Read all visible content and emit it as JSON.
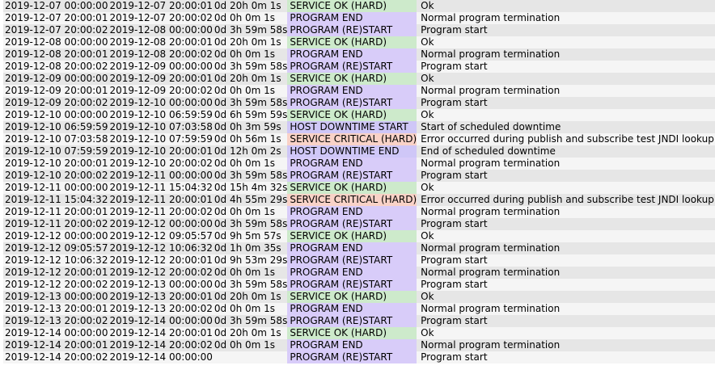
{
  "table": {
    "rows": [
      {
        "start": "2019-12-07 00:00:00",
        "end": "2019-12-07 20:00:01",
        "duration": "0d 20h 0m 1s",
        "type": "SERVICE OK (HARD)",
        "kind": "ok",
        "info": "Ok"
      },
      {
        "start": "2019-12-07 20:00:01",
        "end": "2019-12-07 20:00:02",
        "duration": "0d 0h 0m 1s",
        "type": "PROGRAM END",
        "kind": "end",
        "info": "Normal program termination"
      },
      {
        "start": "2019-12-07 20:00:02",
        "end": "2019-12-08 00:00:00",
        "duration": "0d 3h 59m 58s",
        "type": "PROGRAM (RE)START",
        "kind": "start",
        "info": "Program start"
      },
      {
        "start": "2019-12-08 00:00:00",
        "end": "2019-12-08 20:00:01",
        "duration": "0d 20h 0m 1s",
        "type": "SERVICE OK (HARD)",
        "kind": "ok",
        "info": "Ok"
      },
      {
        "start": "2019-12-08 20:00:01",
        "end": "2019-12-08 20:00:02",
        "duration": "0d 0h 0m 1s",
        "type": "PROGRAM END",
        "kind": "end",
        "info": "Normal program termination"
      },
      {
        "start": "2019-12-08 20:00:02",
        "end": "2019-12-09 00:00:00",
        "duration": "0d 3h 59m 58s",
        "type": "PROGRAM (RE)START",
        "kind": "start",
        "info": "Program start"
      },
      {
        "start": "2019-12-09 00:00:00",
        "end": "2019-12-09 20:00:01",
        "duration": "0d 20h 0m 1s",
        "type": "SERVICE OK (HARD)",
        "kind": "ok",
        "info": "Ok"
      },
      {
        "start": "2019-12-09 20:00:01",
        "end": "2019-12-09 20:00:02",
        "duration": "0d 0h 0m 1s",
        "type": "PROGRAM END",
        "kind": "end",
        "info": "Normal program termination"
      },
      {
        "start": "2019-12-09 20:00:02",
        "end": "2019-12-10 00:00:00",
        "duration": "0d 3h 59m 58s",
        "type": "PROGRAM (RE)START",
        "kind": "start",
        "info": "Program start"
      },
      {
        "start": "2019-12-10 00:00:00",
        "end": "2019-12-10 06:59:59",
        "duration": "0d 6h 59m 59s",
        "type": "SERVICE OK (HARD)",
        "kind": "ok",
        "info": "Ok"
      },
      {
        "start": "2019-12-10 06:59:59",
        "end": "2019-12-10 07:03:58",
        "duration": "0d 0h 3m 59s",
        "type": "HOST DOWNTIME START",
        "kind": "hostdt",
        "info": "Start of scheduled downtime"
      },
      {
        "start": "2019-12-10 07:03:58",
        "end": "2019-12-10 07:59:59",
        "duration": "0d 0h 56m 1s",
        "type": "SERVICE CRITICAL (HARD)",
        "kind": "crit",
        "info": "Error occurred during publish and subscribe test JNDI lookup failed"
      },
      {
        "start": "2019-12-10 07:59:59",
        "end": "2019-12-10 20:00:01",
        "duration": "0d 12h 0m 2s",
        "type": "HOST DOWNTIME END",
        "kind": "hostdt",
        "info": "End of scheduled downtime"
      },
      {
        "start": "2019-12-10 20:00:01",
        "end": "2019-12-10 20:00:02",
        "duration": "0d 0h 0m 1s",
        "type": "PROGRAM END",
        "kind": "end",
        "info": "Normal program termination"
      },
      {
        "start": "2019-12-10 20:00:02",
        "end": "2019-12-11 00:00:00",
        "duration": "0d 3h 59m 58s",
        "type": "PROGRAM (RE)START",
        "kind": "start",
        "info": "Program start"
      },
      {
        "start": "2019-12-11 00:00:00",
        "end": "2019-12-11 15:04:32",
        "duration": "0d 15h 4m 32s",
        "type": "SERVICE OK (HARD)",
        "kind": "ok",
        "info": "Ok"
      },
      {
        "start": "2019-12-11 15:04:32",
        "end": "2019-12-11 20:00:01",
        "duration": "0d 4h 55m 29s",
        "type": "SERVICE CRITICAL (HARD)",
        "kind": "crit",
        "info": "Error occurred during publish and subscribe test JNDI lookup failed"
      },
      {
        "start": "2019-12-11 20:00:01",
        "end": "2019-12-11 20:00:02",
        "duration": "0d 0h 0m 1s",
        "type": "PROGRAM END",
        "kind": "end",
        "info": "Normal program termination"
      },
      {
        "start": "2019-12-11 20:00:02",
        "end": "2019-12-12 00:00:00",
        "duration": "0d 3h 59m 58s",
        "type": "PROGRAM (RE)START",
        "kind": "start",
        "info": "Program start"
      },
      {
        "start": "2019-12-12 00:00:00",
        "end": "2019-12-12 09:05:57",
        "duration": "0d 9h 5m 57s",
        "type": "SERVICE OK (HARD)",
        "kind": "ok",
        "info": "Ok"
      },
      {
        "start": "2019-12-12 09:05:57",
        "end": "2019-12-12 10:06:32",
        "duration": "0d 1h 0m 35s",
        "type": "PROGRAM END",
        "kind": "end",
        "info": "Normal program termination"
      },
      {
        "start": "2019-12-12 10:06:32",
        "end": "2019-12-12 20:00:01",
        "duration": "0d 9h 53m 29s",
        "type": "PROGRAM (RE)START",
        "kind": "start",
        "info": "Program start"
      },
      {
        "start": "2019-12-12 20:00:01",
        "end": "2019-12-12 20:00:02",
        "duration": "0d 0h 0m 1s",
        "type": "PROGRAM END",
        "kind": "end",
        "info": "Normal program termination"
      },
      {
        "start": "2019-12-12 20:00:02",
        "end": "2019-12-13 00:00:00",
        "duration": "0d 3h 59m 58s",
        "type": "PROGRAM (RE)START",
        "kind": "start",
        "info": "Program start"
      },
      {
        "start": "2019-12-13 00:00:00",
        "end": "2019-12-13 20:00:01",
        "duration": "0d 20h 0m 1s",
        "type": "SERVICE OK (HARD)",
        "kind": "ok",
        "info": "Ok"
      },
      {
        "start": "2019-12-13 20:00:01",
        "end": "2019-12-13 20:00:02",
        "duration": "0d 0h 0m 1s",
        "type": "PROGRAM END",
        "kind": "end",
        "info": "Normal program termination"
      },
      {
        "start": "2019-12-13 20:00:02",
        "end": "2019-12-14 00:00:00",
        "duration": "0d 3h 59m 58s",
        "type": "PROGRAM (RE)START",
        "kind": "start",
        "info": "Program start"
      },
      {
        "start": "2019-12-14 00:00:00",
        "end": "2019-12-14 20:00:01",
        "duration": "0d 20h 0m 1s",
        "type": "SERVICE OK (HARD)",
        "kind": "ok",
        "info": "Ok"
      },
      {
        "start": "2019-12-14 20:00:01",
        "end": "2019-12-14 20:00:02",
        "duration": "0d 0h 0m 1s",
        "type": "PROGRAM END",
        "kind": "end",
        "info": "Normal program termination"
      },
      {
        "start": "2019-12-14 20:00:02",
        "end": "2019-12-14 00:00:00",
        "duration": "",
        "type": "PROGRAM (RE)START",
        "kind": "start",
        "info": "Program start"
      }
    ]
  },
  "colors": {
    "row_odd": "#e6e6e6",
    "row_even": "#f5f5f5",
    "ok": "#cdeacb",
    "program": "#d8ccf9",
    "host_downtime": "#cfc7f7",
    "critical": "#f9d2c7"
  }
}
